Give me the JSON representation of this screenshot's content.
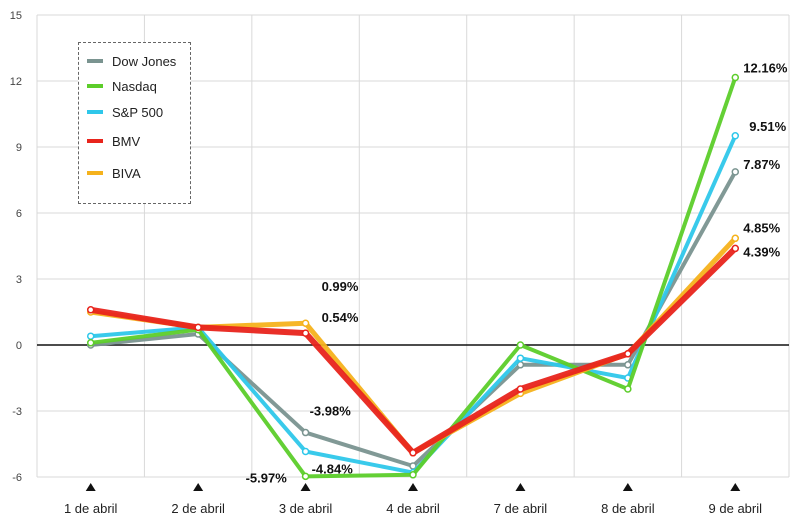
{
  "chart_data": {
    "type": "line",
    "title": "",
    "xlabel": "",
    "ylabel": "",
    "ylim": [
      -6,
      15
    ],
    "yticks": [
      -6,
      -3,
      0,
      3,
      6,
      9,
      12,
      15
    ],
    "ytick_labels": [
      "-6",
      "-3",
      "0",
      "3",
      "6",
      "9",
      "12",
      "15"
    ],
    "categories": [
      "1 de abril",
      "2 de abril",
      "3 de abril",
      "4 de abril",
      "7 de abril",
      "8 de abril",
      "9 de abril"
    ],
    "grid": true,
    "legend_position": "top-left",
    "series": [
      {
        "name": "Dow Jones",
        "color": "#7a9490",
        "values": [
          0.0,
          0.5,
          -3.98,
          -5.5,
          -0.9,
          -0.9,
          7.87
        ]
      },
      {
        "name": "Nasdaq",
        "color": "#5ccd2a",
        "values": [
          0.1,
          0.7,
          -5.97,
          -5.9,
          0.0,
          -2.0,
          12.16
        ]
      },
      {
        "name": "S&P 500",
        "color": "#2ec7ea",
        "values": [
          0.4,
          0.8,
          -4.84,
          -5.8,
          -0.6,
          -1.5,
          9.51
        ]
      },
      {
        "name": "BMV",
        "color": "#e8241c",
        "values": [
          1.6,
          0.8,
          0.54,
          -4.9,
          -2.0,
          -0.4,
          4.39
        ]
      },
      {
        "name": "BIVA",
        "color": "#f5b21c",
        "values": [
          1.5,
          0.8,
          0.99,
          -4.9,
          -2.2,
          -0.4,
          4.85
        ]
      }
    ],
    "annotations": [
      {
        "text": "0.99%",
        "series": "BIVA",
        "index": 2
      },
      {
        "text": "0.54%",
        "series": "BMV",
        "index": 2
      },
      {
        "text": "-3.98%",
        "series": "Dow Jones",
        "index": 2
      },
      {
        "text": "-4.84%",
        "series": "S&P 500",
        "index": 2
      },
      {
        "text": "-5.97%",
        "series": "Nasdaq",
        "index": 2
      },
      {
        "text": "12.16%",
        "series": "Nasdaq",
        "index": 6
      },
      {
        "text": "9.51%",
        "series": "S&P 500",
        "index": 6
      },
      {
        "text": "7.87%",
        "series": "Dow Jones",
        "index": 6
      },
      {
        "text": "4.85%",
        "series": "BIVA",
        "index": 6
      },
      {
        "text": "4.39%",
        "series": "BMV",
        "index": 6
      }
    ]
  }
}
